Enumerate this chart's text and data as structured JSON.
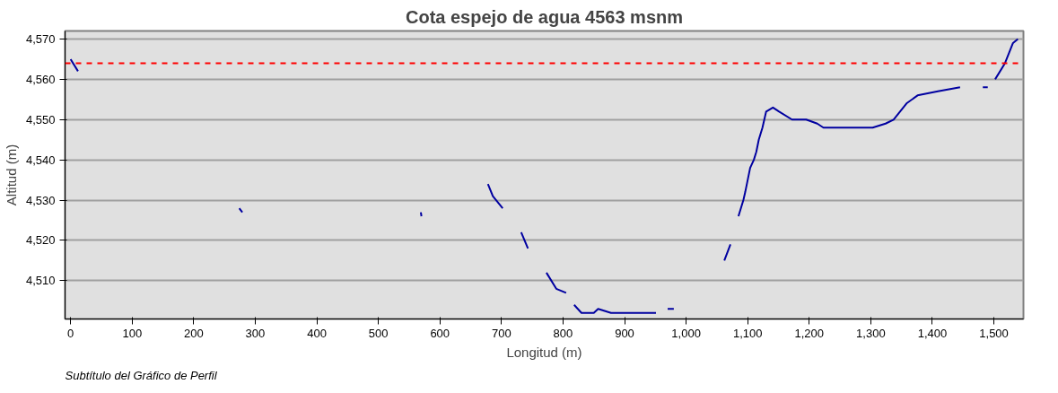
{
  "chart_data": {
    "type": "line",
    "title": "Cota espejo de agua 4563 msnm",
    "subtitle": "Subtítulo del Gráfico de Perfil",
    "xlabel": "Longitud (m)",
    "ylabel": "Altitud (m)",
    "series": [
      {
        "color": "#0000a0",
        "x": [
          0,
          12,
          100,
          274,
          279,
          400,
          569,
          570,
          620,
          678,
          686,
          702,
          720,
          732,
          743,
          760,
          773,
          789,
          805,
          812,
          818,
          830,
          850,
          857,
          878,
          951,
          965,
          970,
          980,
          1020,
          1062,
          1072,
          1080,
          1085,
          1093,
          1096,
          1104,
          1110,
          1114,
          1118,
          1124,
          1130,
          1141,
          1151,
          1172,
          1195,
          1213,
          1223,
          1277,
          1303,
          1324,
          1337,
          1358,
          1376,
          1409,
          1445,
          1470,
          1482,
          1490,
          1495,
          1502,
          1518,
          1531,
          1539
        ],
        "values": [
          4565,
          4562,
          null,
          4528,
          4527,
          null,
          4527,
          4526,
          null,
          4534,
          4531,
          4528,
          null,
          4522,
          4518,
          null,
          4512,
          4508,
          4507,
          null,
          4504,
          4502,
          4502,
          4503,
          4502,
          4502,
          null,
          4503,
          4503,
          null,
          4515,
          4519,
          null,
          4526,
          4530,
          4532,
          4538,
          4540,
          4542,
          4545,
          4548,
          4552,
          4553,
          4552,
          4550,
          4550,
          4549,
          4548,
          4548,
          4548,
          4549,
          4550,
          4554,
          4556,
          4557,
          4558,
          null,
          4558,
          4558,
          null,
          4560,
          4564,
          4569,
          4570
        ]
      }
    ],
    "xlim": [
      -9,
      1548
    ],
    "ylim": [
      4500.5,
      4572
    ],
    "xticks": [
      0,
      100,
      200,
      300,
      400,
      500,
      600,
      700,
      800,
      900,
      {
        "value": 1000,
        "label": "1,000"
      },
      {
        "value": 1100,
        "label": "1,100"
      },
      {
        "value": 1200,
        "label": "1,200"
      },
      {
        "value": 1300,
        "label": "1,300"
      },
      {
        "value": 1400,
        "label": "1,400"
      },
      {
        "value": 1500,
        "label": "1,500"
      }
    ],
    "yticks": [
      {
        "value": 4510,
        "label": "4,510"
      },
      {
        "value": 4520,
        "label": "4,520"
      },
      {
        "value": 4530,
        "label": "4,530"
      },
      {
        "value": 4540,
        "label": "4,540"
      },
      {
        "value": 4550,
        "label": "4,550"
      },
      {
        "value": 4560,
        "label": "4,560"
      },
      {
        "value": 4570,
        "label": "4,570"
      }
    ],
    "ref_lines": [
      {
        "axis": "y",
        "value": 4564,
        "color": "#ff0000",
        "line_style": "dashed"
      }
    ],
    "grid": "y",
    "marker": "none",
    "line_style": "solid"
  }
}
